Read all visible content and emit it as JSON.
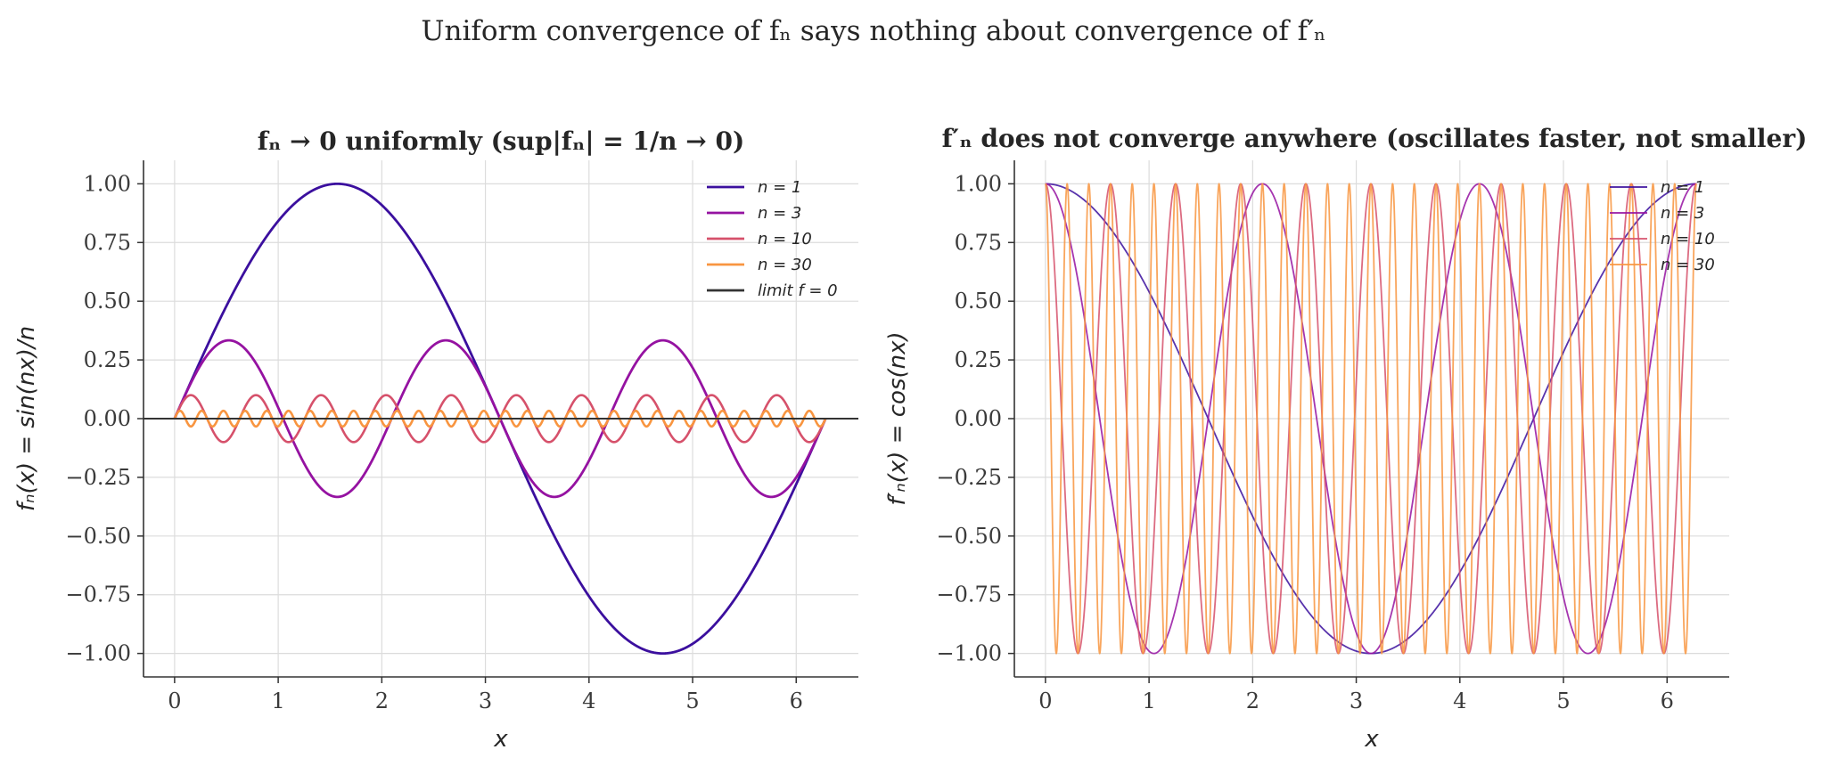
{
  "figure": {
    "suptitle": "Uniform convergence of fₙ says nothing about convergence of f′ₙ"
  },
  "chart_data": [
    {
      "type": "line",
      "title": "fₙ → 0 uniformly (sup|fₙ| = 1/n → 0)",
      "xlabel": "x",
      "ylabel": "fₙ(x) = sin(nx)/n",
      "xlim": [
        -0.3,
        6.6
      ],
      "ylim": [
        -1.1,
        1.1
      ],
      "xticks": [
        "0",
        "1",
        "2",
        "3",
        "4",
        "5",
        "6"
      ],
      "yticks": [
        "1.00",
        "0.75",
        "0.50",
        "0.25",
        "0.00",
        "−0.25",
        "−0.50",
        "−0.75",
        "−1.00"
      ],
      "grid": true,
      "legend": "top-right",
      "x_range": [
        0,
        6.2832
      ],
      "series": [
        {
          "name": "n = 1",
          "n": 1,
          "function": "sin(nx)/n",
          "color": "#3b0f9e"
        },
        {
          "name": "n = 3",
          "n": 3,
          "function": "sin(nx)/n",
          "color": "#9512a1"
        },
        {
          "name": "n = 10",
          "n": 10,
          "function": "sin(nx)/n",
          "color": "#d6516b"
        },
        {
          "name": "n = 30",
          "n": 30,
          "function": "sin(nx)/n",
          "color": "#f89540"
        },
        {
          "name": "limit f = 0",
          "function": "0",
          "color": "#333333"
        }
      ]
    },
    {
      "type": "line",
      "title": "f′ₙ does not converge anywhere (oscillates faster, not smaller)",
      "xlabel": "x",
      "ylabel": "f′ₙ(x) = cos(nx)",
      "xlim": [
        -0.3,
        6.6
      ],
      "ylim": [
        -1.1,
        1.1
      ],
      "xticks": [
        "0",
        "1",
        "2",
        "3",
        "4",
        "5",
        "6"
      ],
      "yticks": [
        "1.00",
        "0.75",
        "0.50",
        "0.25",
        "0.00",
        "−0.25",
        "−0.50",
        "−0.75",
        "−1.00"
      ],
      "grid": true,
      "legend": "top-right",
      "x_range": [
        0,
        6.2832
      ],
      "series": [
        {
          "name": "n = 1",
          "n": 1,
          "function": "cos(nx)",
          "color": "#3b0f9e"
        },
        {
          "name": "n = 3",
          "n": 3,
          "function": "cos(nx)",
          "color": "#9512a1"
        },
        {
          "name": "n = 10",
          "n": 10,
          "function": "cos(nx)",
          "color": "#d6516b"
        },
        {
          "name": "n = 30",
          "n": 30,
          "function": "cos(nx)",
          "color": "#f89540"
        }
      ]
    }
  ]
}
